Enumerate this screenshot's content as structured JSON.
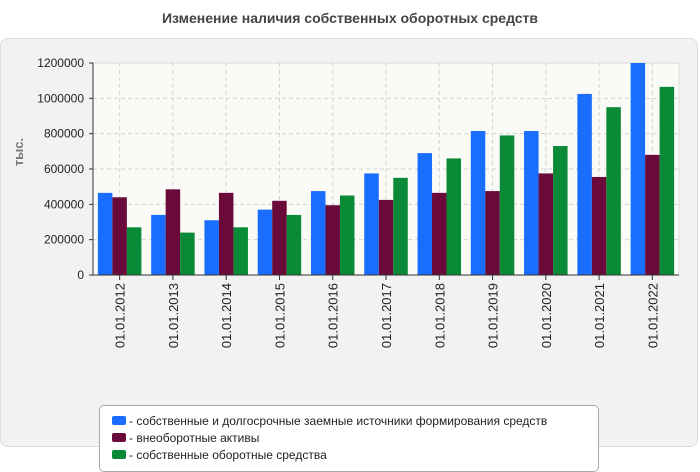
{
  "chart_data": {
    "type": "bar",
    "title": "Изменение наличия собственных оборотных средств",
    "xlabel": "",
    "ylabel": "тыс.",
    "ylim": [
      0,
      1200000
    ],
    "yticks": [
      0,
      200000,
      400000,
      600000,
      800000,
      1000000,
      1200000
    ],
    "ytick_labels": [
      "0",
      "200000",
      "400000",
      "600000",
      "800000",
      "1000000",
      "1200000"
    ],
    "grid": true,
    "legend_position": "bottom",
    "categories": [
      "01.01.2012",
      "01.01.2013",
      "01.01.2014",
      "01.01.2015",
      "01.01.2016",
      "01.01.2017",
      "01.01.2018",
      "01.01.2019",
      "01.01.2020",
      "01.01.2021",
      "01.01.2022"
    ],
    "series": [
      {
        "name": "собственные и долгосрочные заемные источники формирования средств",
        "color": "#1a6eff",
        "values": [
          465000,
          340000,
          310000,
          370000,
          475000,
          575000,
          690000,
          815000,
          815000,
          1025000,
          1200000
        ]
      },
      {
        "name": "внеоборотные активы",
        "color": "#6a0a3a",
        "values": [
          440000,
          485000,
          465000,
          420000,
          395000,
          425000,
          465000,
          475000,
          575000,
          555000,
          680000
        ]
      },
      {
        "name": "собственные оборотные средства",
        "color": "#0a8a36",
        "values": [
          270000,
          240000,
          270000,
          340000,
          450000,
          550000,
          660000,
          790000,
          730000,
          950000,
          1065000
        ]
      }
    ]
  },
  "legend": {
    "marker_prefix": "- ",
    "items": [
      "собственные и долгосрочные заемные источники формирования средств",
      "внеоборотные активы",
      "собственные оборотные средства"
    ]
  }
}
